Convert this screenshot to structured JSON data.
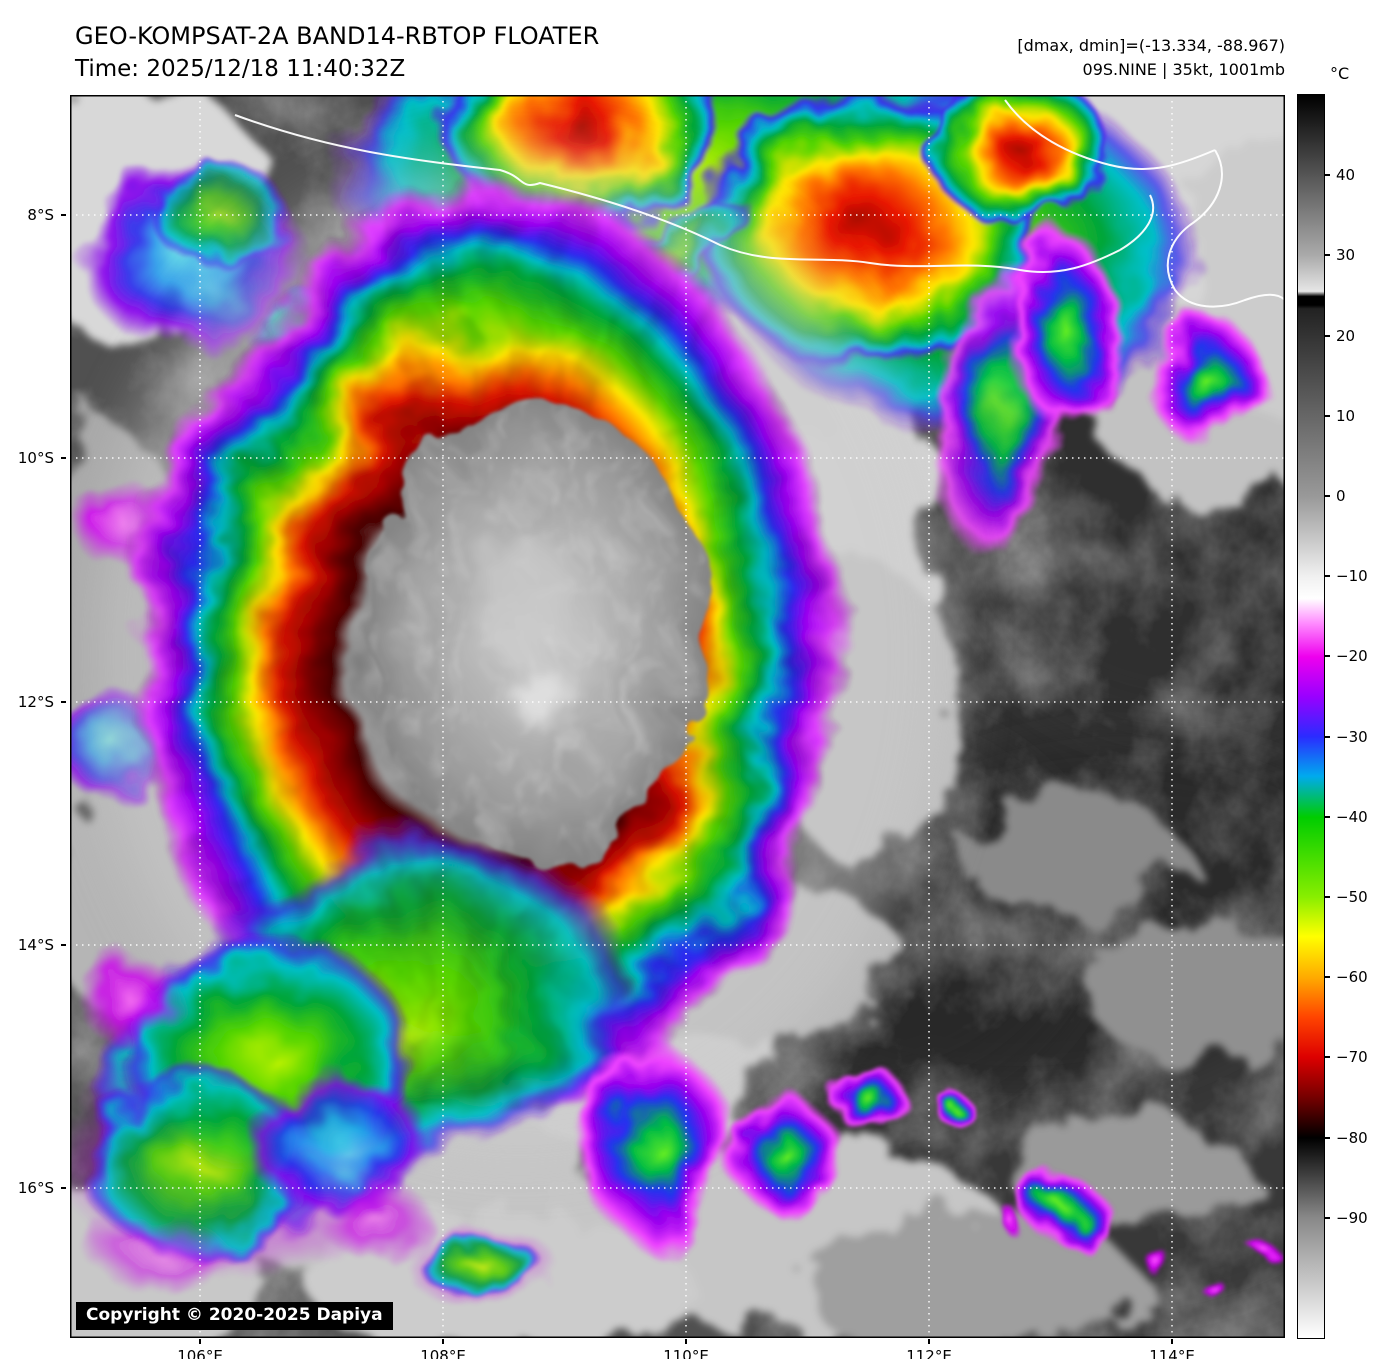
{
  "header": {
    "title": "GEO-KOMPSAT-2A BAND14-RBTOP FLOATER",
    "time": "Time: 2025/12/18 11:40:32Z",
    "dmax_dmin": "[dmax, dmin]=(-13.334, -88.967)",
    "storm_info": "09S.NINE | 35kt, 1001mb"
  },
  "map": {
    "lat_labels": [
      "8°S",
      "10°S",
      "12°S",
      "14°S",
      "16°S"
    ],
    "lon_labels": [
      "106°E",
      "108°E",
      "110°E",
      "112°E",
      "114°E"
    ],
    "copyright": "Copyright © 2020-2025 Dapiya"
  },
  "colorbar": {
    "unit": "°C",
    "tick_values": [
      40,
      30,
      20,
      10,
      0,
      -10,
      -20,
      -30,
      -40,
      -50,
      -60,
      -70,
      -80,
      -90
    ],
    "tick_labels": [
      "40",
      "30",
      "20",
      "10",
      "0",
      "−10",
      "−20",
      "−30",
      "−40",
      "−50",
      "−60",
      "−70",
      "−80",
      "−90"
    ],
    "scale": [
      [
        0,
        "#000000"
      ],
      [
        12.9,
        "#aaaaaa"
      ],
      [
        15.8,
        "#e6e6e6"
      ],
      [
        16.2,
        "#000000"
      ],
      [
        16.9,
        "#000000"
      ],
      [
        17.2,
        "#222222"
      ],
      [
        25.8,
        "#666666"
      ],
      [
        32.3,
        "#999999"
      ],
      [
        38.7,
        "#f0f0f0"
      ],
      [
        40.5,
        "#ffffff"
      ],
      [
        42.5,
        "#ff8cff"
      ],
      [
        45.2,
        "#ee00ee"
      ],
      [
        48.4,
        "#9900ff"
      ],
      [
        51.6,
        "#2b2bff"
      ],
      [
        54.8,
        "#00aaee"
      ],
      [
        58.1,
        "#00cc00"
      ],
      [
        64.5,
        "#88ee00"
      ],
      [
        67.7,
        "#ffff00"
      ],
      [
        71.0,
        "#ffaa00"
      ],
      [
        74.2,
        "#ff4400"
      ],
      [
        77.4,
        "#dd0000"
      ],
      [
        80.6,
        "#770000"
      ],
      [
        83.9,
        "#000000"
      ],
      [
        90.3,
        "#888888"
      ],
      [
        100,
        "#ffffff"
      ]
    ]
  },
  "colors": {
    "grid": "#ffffff",
    "coastline": "#ffffff",
    "frame": "#000000",
    "copyright_bg": "#000000",
    "copyright_fg": "#ffffff"
  }
}
